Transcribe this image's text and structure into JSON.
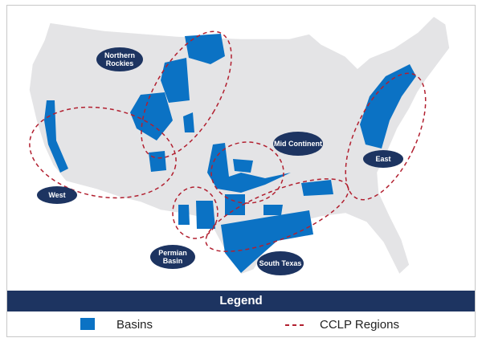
{
  "regions": [
    {
      "name": "Northern Rockies"
    },
    {
      "name": "West"
    },
    {
      "name": "Mid Continent"
    },
    {
      "name": "East"
    },
    {
      "name": "Permian Basin"
    },
    {
      "name": "South Texas"
    }
  ],
  "legend": {
    "title": "Legend",
    "basins_label": "Basins",
    "regions_label": "CCLP Regions"
  },
  "colors": {
    "basin": "#0b72c4",
    "region_line": "#b22030",
    "label_bg": "#1d3461",
    "land": "#e4e4e6"
  }
}
